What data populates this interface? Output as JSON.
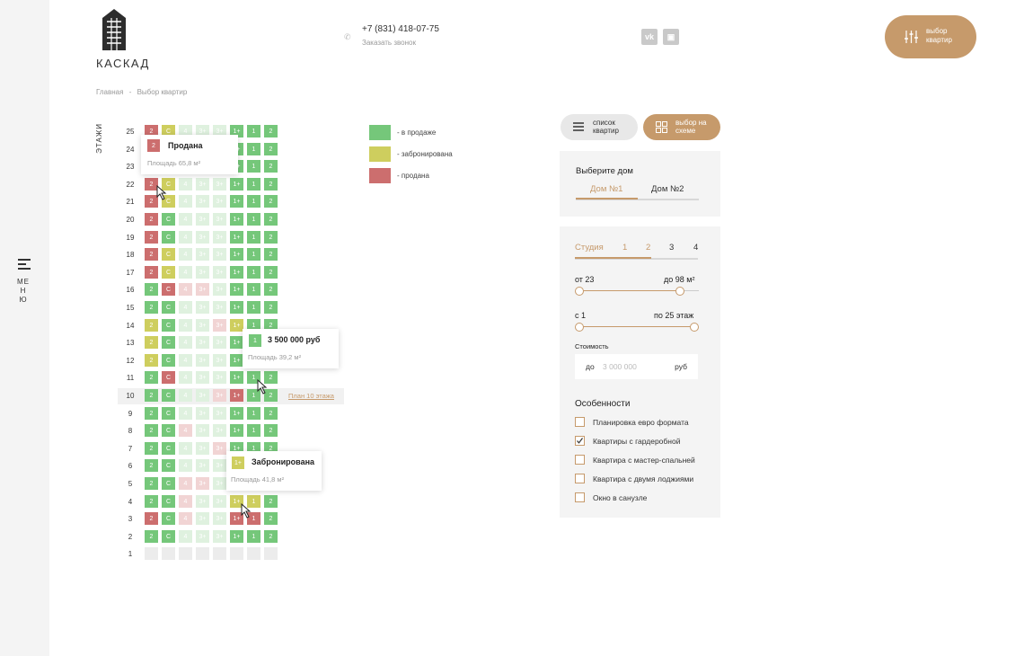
{
  "brand": {
    "name": "КАСКАД"
  },
  "header": {
    "phone": "+7 (831) 418-07-75",
    "callback": "Заказать звонок",
    "social": [
      {
        "icon": "vk-icon",
        "glyph": "vk"
      },
      {
        "icon": "instagram-icon",
        "glyph": "▣"
      }
    ],
    "choose_button": "выбор квартир"
  },
  "menu": {
    "label": "МЕНЮ"
  },
  "breadcrumb": {
    "items": [
      "Главная",
      "Выбор квартир"
    ],
    "separator": "-"
  },
  "floors_title": "ЭТАЖИ",
  "colors": {
    "sale": "#75c77a",
    "reserved": "#cece5e",
    "sold": "#cc6e6e",
    "faded": "#dff1df",
    "faded_pink": "#f1d4d4",
    "empty": "#ececec",
    "accent": "#c69a6b"
  },
  "grid": {
    "columns": [
      "2",
      "С",
      "4",
      "3+",
      "3+",
      "1+",
      "1",
      "2"
    ],
    "rows": [
      {
        "floor": "25",
        "s": "dyffflgg"
      },
      {
        "floor": "24",
        "s": "dyffflgg"
      },
      {
        "floor": "23",
        "s": "dyffflgg"
      },
      {
        "floor": "22",
        "s": "dyffflgg"
      },
      {
        "floor": "21",
        "s": "dyffflgg"
      },
      {
        "floor": "20",
        "s": "dgffflgg"
      },
      {
        "floor": "19",
        "s": "dgffflgg"
      },
      {
        "floor": "18",
        "s": "dyffflgg"
      },
      {
        "floor": "17",
        "s": "dyffflgg"
      },
      {
        "floor": "16",
        "s": "gdppflgg"
      },
      {
        "floor": "15",
        "s": "ggffflgg"
      },
      {
        "floor": "14",
        "s": "ygffpygg"
      },
      {
        "floor": "13",
        "s": "ygffflgg"
      },
      {
        "floor": "12",
        "s": "ygffflgg"
      },
      {
        "floor": "11",
        "s": "gdffflgg"
      },
      {
        "floor": "10",
        "s": "ggffpdgg"
      },
      {
        "floor": "9",
        "s": "ggffflgg"
      },
      {
        "floor": "8",
        "s": "ggpfflgg"
      },
      {
        "floor": "7",
        "s": "ggffplgg"
      },
      {
        "floor": "6",
        "s": "ggffflgg"
      },
      {
        "floor": "5",
        "s": "ggppflgg"
      },
      {
        "floor": "4",
        "s": "ggpffyyg"
      },
      {
        "floor": "3",
        "s": "dgpffddg"
      },
      {
        "floor": "2",
        "s": "ggffflgg"
      },
      {
        "floor": "1",
        "s": "eeeeeeee"
      }
    ],
    "plan_link": "План 10 этажа"
  },
  "tooltips": {
    "sold": {
      "chip": "2",
      "title": "Продана",
      "area": "Площадь 65,8 м²"
    },
    "price": {
      "chip": "1",
      "title": "3 500 000 руб",
      "area": "Площадь 39,2 м²"
    },
    "reserved": {
      "chip": "1+",
      "title": "Забронирована",
      "area": "Площадь 41,8 м²"
    }
  },
  "legend": [
    {
      "label": "- в продаже",
      "status": "sale"
    },
    {
      "label": "- забронирована",
      "status": "reserved"
    },
    {
      "label": "- продана",
      "status": "sold"
    }
  ],
  "view": {
    "list": "список квартир",
    "scheme": "выбор на схеме"
  },
  "filters": {
    "house_title": "Выберите дом",
    "houses": [
      "Дом №1",
      "Дом №2"
    ],
    "rooms": [
      "Студия",
      "1",
      "2",
      "3",
      "4"
    ],
    "area_from": "от 23",
    "area_to": "до 98 м²",
    "floor_from": "с 1",
    "floor_to": "по 25 этаж",
    "price_label": "Стоимость",
    "price_prefix": "до",
    "price_placeholder": "3 000 000",
    "price_suffix": "руб",
    "features_title": "Особенности",
    "features": [
      {
        "label": "Планировка евро формата",
        "checked": false
      },
      {
        "label": "Квартиры с гардеробной",
        "checked": true
      },
      {
        "label": "Квартира с мастер-спальней",
        "checked": false
      },
      {
        "label": "Квартира с двумя лоджиями",
        "checked": false
      },
      {
        "label": "Окно в санузле",
        "checked": false
      }
    ]
  }
}
